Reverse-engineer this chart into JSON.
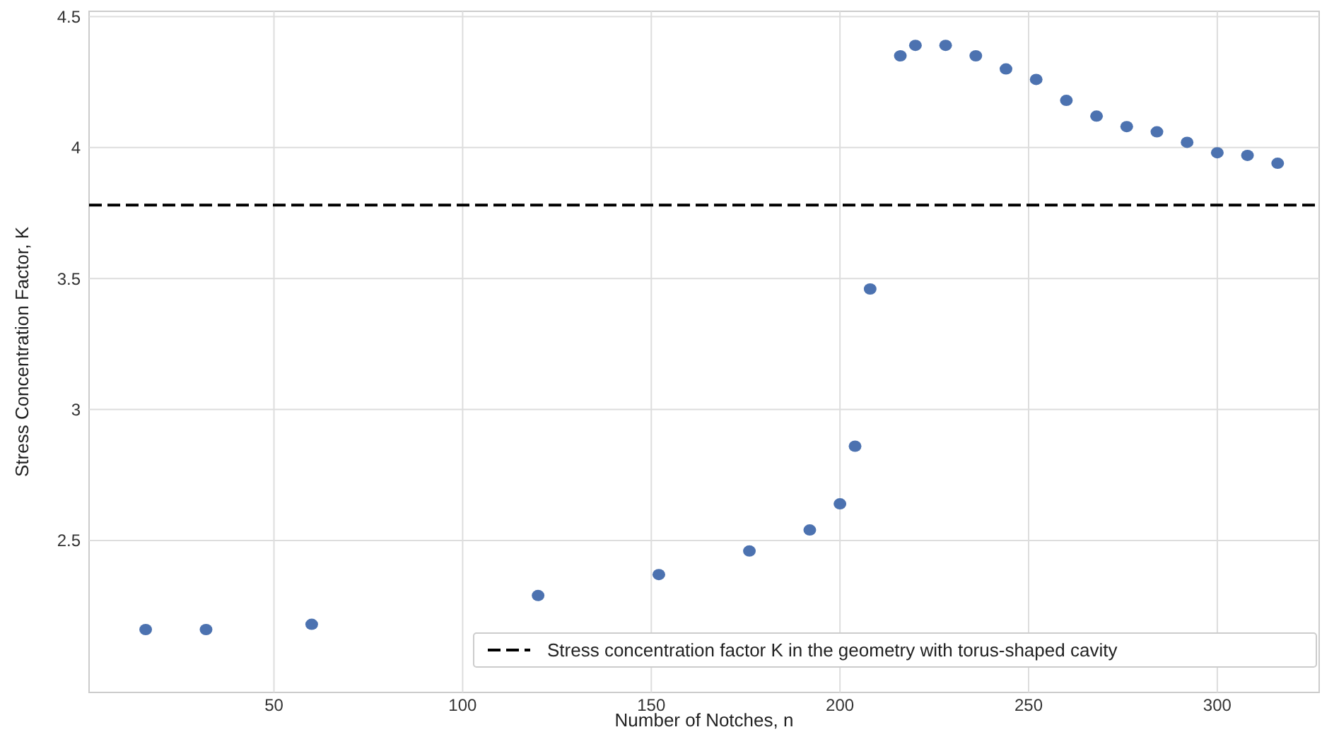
{
  "chart_data": {
    "type": "scatter",
    "xlabel": "Number of Notches, n",
    "ylabel": "Stress Concentration Factor, K",
    "x": [
      16,
      32,
      60,
      120,
      152,
      176,
      192,
      200,
      204,
      208,
      216,
      220,
      228,
      236,
      244,
      252,
      260,
      268,
      276,
      284,
      292,
      300,
      308,
      316
    ],
    "series": [
      {
        "color": "#4c72b0",
        "values": [
          2.16,
          2.16,
          2.18,
          2.29,
          2.37,
          2.46,
          2.54,
          2.64,
          2.86,
          3.46,
          4.35,
          4.39,
          4.39,
          4.35,
          4.3,
          4.26,
          4.18,
          4.12,
          4.08,
          4.06,
          4.02,
          3.98,
          3.97,
          3.94
        ]
      }
    ],
    "xlim": [
      1,
      327
    ],
    "ylim": [
      1.92,
      4.52
    ],
    "xticks": [
      50,
      100,
      150,
      200,
      250,
      300
    ],
    "yticks": [
      2.5,
      3.0,
      3.5,
      4.0,
      4.5
    ],
    "ref_lines": [
      {
        "axis": "y",
        "value": 3.78,
        "label": "Stress concentration factor K in the geometry with torus-shaped cavity",
        "color": "#000000",
        "line_style": "dashed"
      }
    ],
    "grid": true,
    "legend": "bottom right",
    "marker": "circle"
  }
}
